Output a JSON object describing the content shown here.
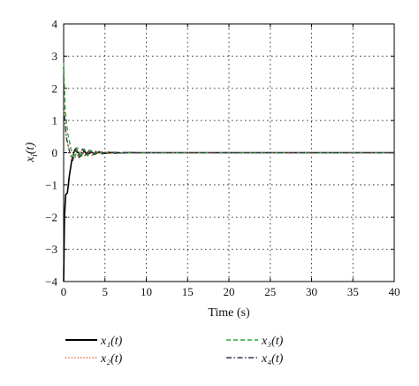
{
  "chart_data": {
    "type": "line",
    "xlabel": "Time (s)",
    "ylabel": "x",
    "ylabel_sub": "i",
    "ylabel_arg": "(t)",
    "xlim": [
      0,
      40
    ],
    "ylim": [
      -4,
      4
    ],
    "xticks": [
      "0",
      "5",
      "10",
      "15",
      "20",
      "25",
      "30",
      "35",
      "40"
    ],
    "yticks": [
      "4",
      "3",
      "2",
      "1",
      "0",
      "−1",
      "−2",
      "−3",
      "−4"
    ],
    "grid": true,
    "legend_position": "below",
    "series": [
      {
        "name": "x₁(t)",
        "color": "#000000",
        "style": "solid",
        "x": [
          0,
          0.1,
          0.25,
          0.45,
          0.7,
          1.0,
          1.35,
          1.7,
          2.1,
          2.5,
          2.9,
          3.3,
          3.8,
          4.3,
          5.0,
          6.0,
          7.0,
          8.0,
          9.0,
          10.0,
          40.0
        ],
        "y": [
          -4.0,
          -2.0,
          -1.3,
          -1.25,
          -0.7,
          -0.2,
          0.1,
          0.02,
          -0.1,
          0.05,
          -0.08,
          0.04,
          -0.05,
          0.03,
          -0.02,
          0.01,
          -0.01,
          0.005,
          0,
          0,
          0
        ]
      },
      {
        "name": "x₂(t)",
        "color": "#e8542a",
        "style": "dotted",
        "x": [
          0,
          0.3,
          0.6,
          1.0,
          1.4,
          1.8,
          2.2,
          2.6,
          3.0,
          3.4,
          3.8,
          4.2,
          4.8,
          5.5,
          6.5,
          7.5,
          8.5,
          10.0,
          40.0
        ],
        "y": [
          1.3,
          0.6,
          0.15,
          -0.2,
          0.12,
          -0.15,
          0.1,
          -0.12,
          0.08,
          -0.09,
          0.06,
          -0.05,
          0.04,
          -0.03,
          0.02,
          -0.01,
          0.005,
          0,
          0
        ]
      },
      {
        "name": "x₃(t)",
        "color": "#2aa836",
        "style": "dashed",
        "x": [
          0,
          0.2,
          0.5,
          0.9,
          1.3,
          1.7,
          2.1,
          2.5,
          2.9,
          3.3,
          3.7,
          4.2,
          4.8,
          5.5,
          6.5,
          7.5,
          8.5,
          10.0,
          40.0
        ],
        "y": [
          2.8,
          1.3,
          0.6,
          0.1,
          -0.2,
          0.15,
          -0.15,
          0.12,
          -0.1,
          0.08,
          -0.06,
          0.05,
          -0.04,
          0.03,
          -0.02,
          0.01,
          -0.005,
          0,
          0
        ]
      },
      {
        "name": "x₄(t)",
        "color": "#33334d",
        "style": "dashdot",
        "x": [
          0,
          0.3,
          0.7,
          1.1,
          1.5,
          1.9,
          2.3,
          2.7,
          3.1,
          3.5,
          4.0,
          4.6,
          5.3,
          6.2,
          7.2,
          8.5,
          10.0,
          40.0
        ],
        "y": [
          1.5,
          0.5,
          0.05,
          -0.25,
          0.15,
          -0.15,
          0.12,
          -0.1,
          0.08,
          -0.07,
          0.05,
          -0.04,
          0.03,
          -0.02,
          0.01,
          -0.005,
          0,
          0
        ]
      }
    ]
  }
}
